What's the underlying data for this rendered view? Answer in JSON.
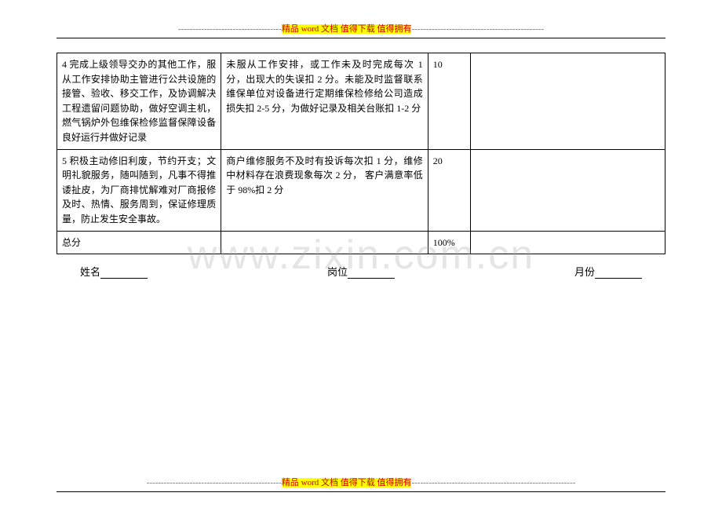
{
  "header": {
    "dashes_left": "------------------------------------",
    "text": "精品 word 文档  值得下载  值得拥有",
    "dashes_right": "----------------------------------------------"
  },
  "table": {
    "rows": [
      {
        "c1": "4 完成上级领导交办的其他工作，服从工作安排协助主管进行公共设施的接管、验收、移交工作，及协调解决工程遗留问题协助，做好空调主机，燃气锅炉外包维保检修监督保障设备良好运行并做好记录",
        "c2": "未服从工作安排，或工作未及时完成每次 1 分，出现大的失误扣 2 分。未能及时监督联系维保单位对设备进行定期维保检修给公司造成损失扣 2-5 分，为做好记录及相关台账扣 1-2 分",
        "c3": "10",
        "c4": ""
      },
      {
        "c1": "5 积极主动修旧利废，节约开支；文明礼貌服务，随叫随到，凡事不得推诿扯皮，为厂商排忧解难对厂商报修及时、热情、服务周到，保证修理质量，防止发生安全事故。",
        "c2": "商户维修服务不及时有投诉每次扣 1 分，维修中材料存在浪费现象每次 2 分，  客户满意率低于 98%扣 2 分",
        "c3": "20",
        "c4": ""
      }
    ],
    "total": {
      "label": "总分",
      "value": "100%"
    }
  },
  "form": {
    "name_label": "姓名",
    "position_label": "岗位",
    "month_label": "月份"
  },
  "watermark": "www.zixin.com.cn",
  "footer": {
    "dashes_left": "-----------------------------------------------",
    "text": "精品 word 文档  值得下载  值得拥有",
    "dashes_right": "---------------------------------------------------------"
  }
}
